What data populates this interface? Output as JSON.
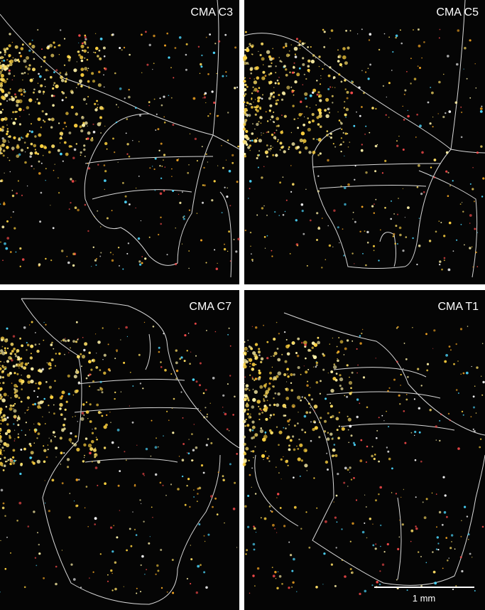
{
  "panels": [
    {
      "label": "CMA C3"
    },
    {
      "label": "CMA C5"
    },
    {
      "label": "CMA C7"
    },
    {
      "label": "CMA T1"
    }
  ],
  "scale_bar": {
    "label": "1 mm"
  }
}
